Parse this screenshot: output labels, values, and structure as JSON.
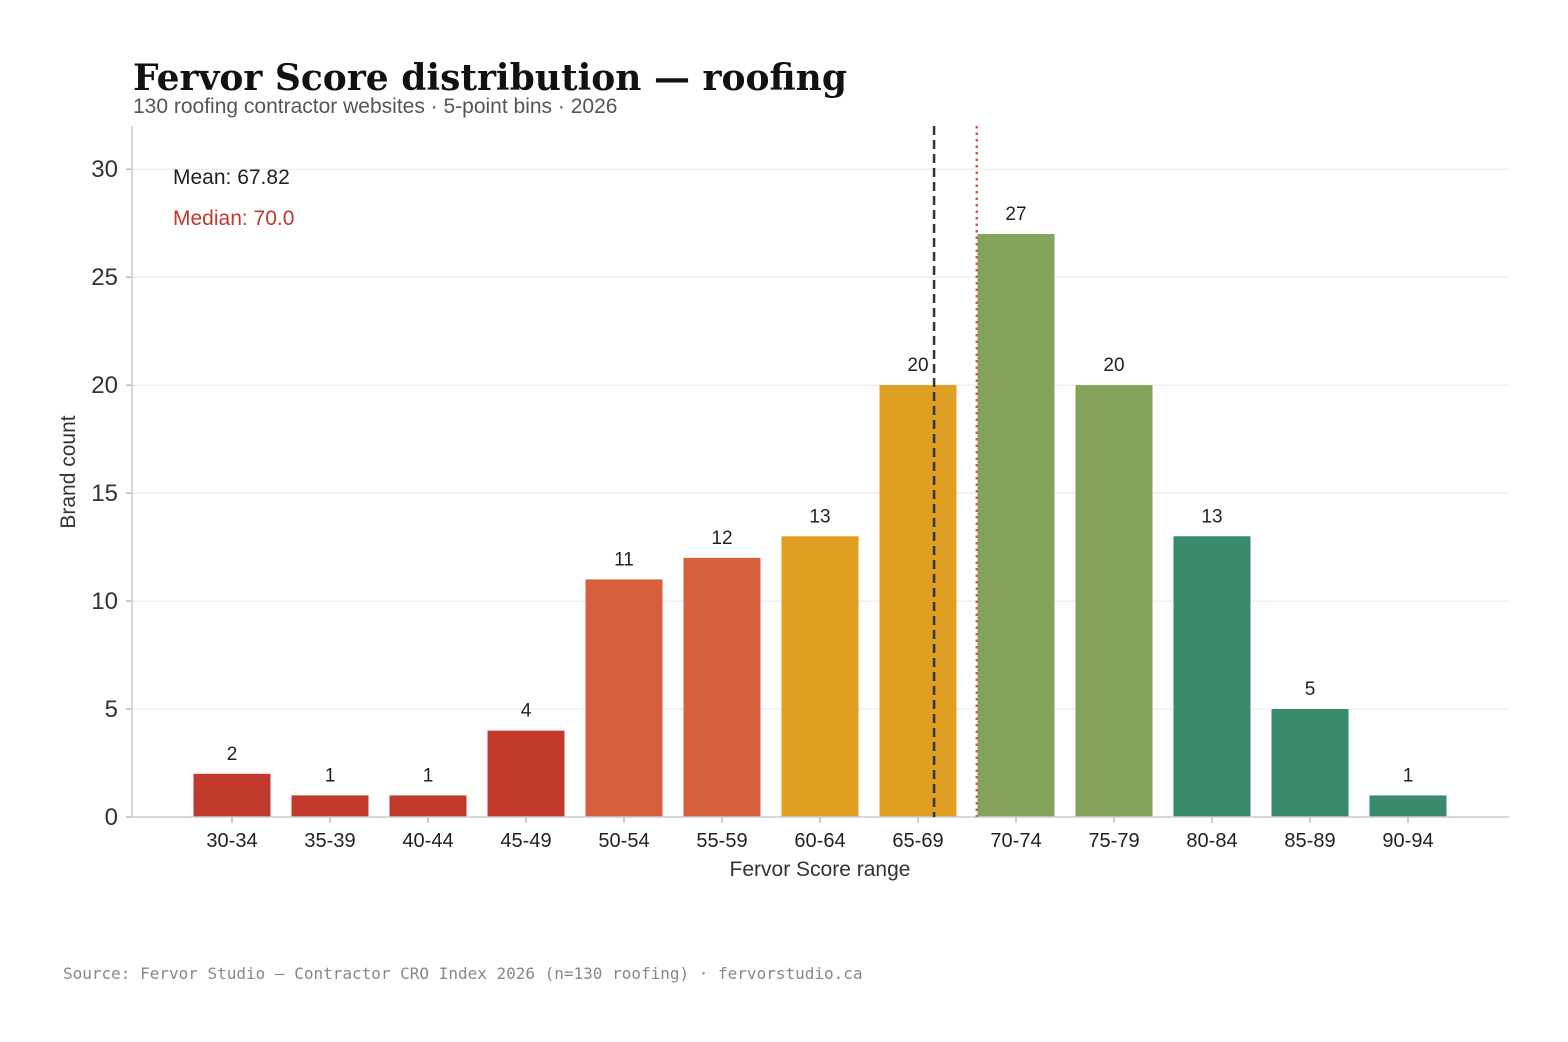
{
  "chart_data": {
    "type": "bar",
    "title": "Fervor Score distribution — roofing",
    "subtitle": "130 roofing contractor websites · 5-point bins · 2026",
    "xlabel": "Fervor Score range",
    "ylabel": "Brand count",
    "categories": [
      "30-34",
      "35-39",
      "40-44",
      "45-49",
      "50-54",
      "55-59",
      "60-64",
      "65-69",
      "70-74",
      "75-79",
      "80-84",
      "85-89",
      "90-94"
    ],
    "values": [
      2,
      1,
      1,
      4,
      11,
      12,
      13,
      20,
      27,
      20,
      13,
      5,
      1
    ],
    "bar_colors": [
      "#c0392b",
      "#c0392b",
      "#c0392b",
      "#c0392b",
      "#d65f3c",
      "#d65f3c",
      "#df9f22",
      "#df9f22",
      "#84a35a",
      "#84a35a",
      "#3a8a6c",
      "#3a8a6c",
      "#3a8a6c"
    ],
    "ylim": [
      0,
      32
    ],
    "yticks": [
      0,
      5,
      10,
      15,
      20,
      25,
      30
    ],
    "grid": true,
    "mean": {
      "label": "Mean: 67.82",
      "value": 67.82,
      "color": "#333333",
      "style": "dashed"
    },
    "median": {
      "label": "Median: 70.0",
      "value": 70.0,
      "color": "#d9534f",
      "label_color": "#c0392b",
      "style": "dotted"
    }
  },
  "source_note": "Source: Fervor Studio — Contractor CRO Index 2026 (n=130 roofing) · fervorstudio.ca"
}
